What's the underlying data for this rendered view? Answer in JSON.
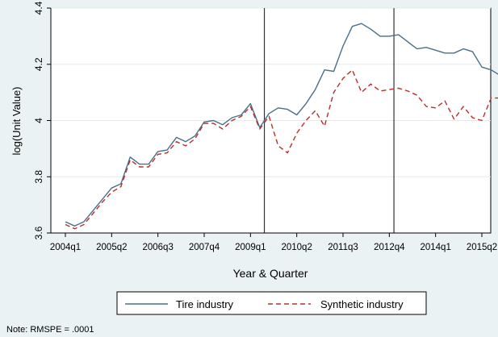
{
  "chart_data": {
    "type": "line",
    "xlabel": "Year & Quarter",
    "ylabel": "log(Unit Value)",
    "ylim": [
      3.6,
      4.4
    ],
    "yticks": [
      3.6,
      3.8,
      4,
      4.2,
      4.4
    ],
    "ytick_labels": [
      "3.6",
      "3.8",
      "4",
      "4.2",
      "4.4"
    ],
    "x_ticks": [
      {
        "index": 0,
        "label": "2004q1"
      },
      {
        "index": 5,
        "label": "2005q2"
      },
      {
        "index": 10,
        "label": "2006q3"
      },
      {
        "index": 15,
        "label": "2007q4"
      },
      {
        "index": 20,
        "label": "2009q1"
      },
      {
        "index": 25,
        "label": "2010q2"
      },
      {
        "index": 30,
        "label": "2011q3"
      },
      {
        "index": 35,
        "label": "2012q4"
      },
      {
        "index": 40,
        "label": "2014q1"
      },
      {
        "index": 45,
        "label": "2015q2"
      }
    ],
    "x_range": [
      0,
      45
    ],
    "vertical_lines": [
      21.5,
      35.5
    ],
    "grid": "horizontal",
    "legend_position": "bottom",
    "note": "Note: RMSPE = .0001",
    "series": [
      {
        "name": "Tire industry",
        "color": "#4a6f8a",
        "style": "solid",
        "values": [
          3.64,
          3.625,
          3.64,
          3.68,
          3.72,
          3.76,
          3.775,
          3.87,
          3.845,
          3.845,
          3.89,
          3.895,
          3.94,
          3.925,
          3.945,
          3.995,
          4.0,
          3.985,
          4.01,
          4.02,
          4.06,
          3.975,
          4.025,
          4.045,
          4.04,
          4.02,
          4.06,
          4.11,
          4.18,
          4.175,
          4.265,
          4.335,
          4.345,
          4.325,
          4.3,
          4.3,
          4.305,
          4.28,
          4.255,
          4.26,
          4.25,
          4.24,
          4.24,
          4.255,
          4.245,
          4.19,
          4.18,
          4.16
        ]
      },
      {
        "name": "Synthetic industry",
        "color": "#b5302c",
        "style": "dashed",
        "values": [
          3.63,
          3.615,
          3.63,
          3.67,
          3.71,
          3.745,
          3.765,
          3.86,
          3.835,
          3.835,
          3.88,
          3.885,
          3.925,
          3.91,
          3.935,
          3.99,
          3.99,
          3.97,
          4.0,
          4.015,
          4.05,
          3.97,
          4.015,
          3.91,
          3.885,
          3.955,
          4.0,
          4.035,
          3.98,
          4.1,
          4.15,
          4.18,
          4.1,
          4.13,
          4.105,
          4.11,
          4.115,
          4.105,
          4.09,
          4.05,
          4.045,
          4.07,
          4.005,
          4.05,
          4.01,
          4.0,
          4.08,
          4.08
        ]
      }
    ]
  }
}
